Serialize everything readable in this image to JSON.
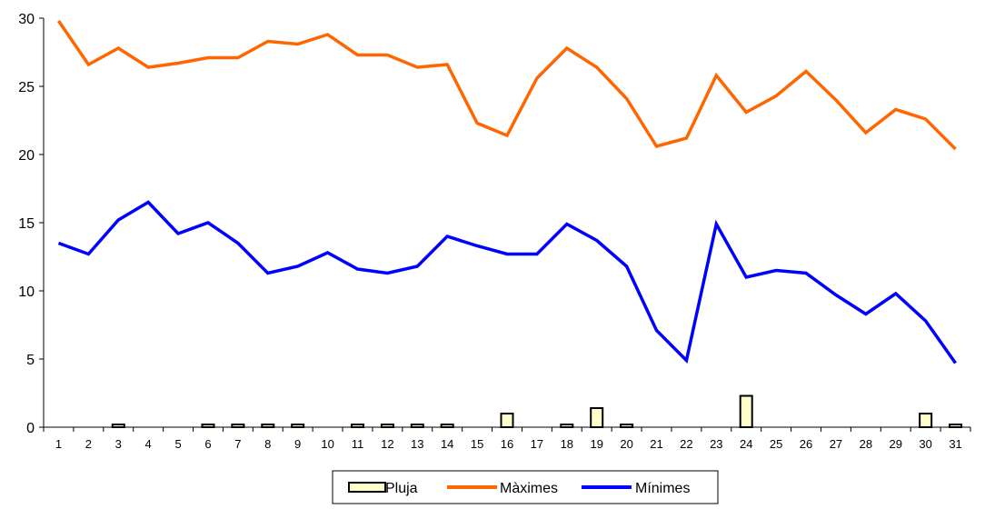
{
  "chart_data": {
    "type": "line",
    "x": [
      1,
      2,
      3,
      4,
      5,
      6,
      7,
      8,
      9,
      10,
      11,
      12,
      13,
      14,
      15,
      16,
      17,
      18,
      19,
      20,
      21,
      22,
      23,
      24,
      25,
      26,
      27,
      28,
      29,
      30,
      31
    ],
    "yticks": [
      0,
      5,
      10,
      15,
      20,
      25,
      30
    ],
    "ylim": [
      0,
      30
    ],
    "title": "",
    "xlabel": "",
    "ylabel": "",
    "grid": false,
    "legend_position": "bottom",
    "series": [
      {
        "name": "Pluja",
        "type": "bar",
        "color": "#FFFFCC",
        "values": [
          0,
          0,
          0.1,
          0,
          0,
          0.1,
          0.1,
          0.1,
          0.1,
          0,
          0.1,
          0.1,
          0.1,
          0.1,
          0,
          1.0,
          0,
          0.1,
          1.4,
          0.1,
          0,
          0,
          0,
          2.3,
          0,
          0,
          0,
          0,
          0,
          1.0,
          0.1
        ]
      },
      {
        "name": "Màximes",
        "type": "line",
        "color": "#FF6600",
        "values": [
          29.8,
          26.6,
          27.8,
          26.4,
          26.7,
          27.1,
          27.1,
          28.3,
          28.1,
          28.8,
          27.3,
          27.3,
          26.4,
          26.6,
          22.3,
          21.4,
          25.6,
          27.8,
          26.4,
          24.1,
          20.6,
          21.2,
          25.8,
          23.1,
          24.3,
          26.1,
          24.0,
          21.6,
          23.3,
          22.6,
          20.4
        ]
      },
      {
        "name": "Mínimes",
        "type": "line",
        "color": "#0000FF",
        "values": [
          13.5,
          12.7,
          15.2,
          16.5,
          14.2,
          15.0,
          13.5,
          11.3,
          11.8,
          12.8,
          11.6,
          11.3,
          11.8,
          14.0,
          13.3,
          12.7,
          12.7,
          14.9,
          13.7,
          11.8,
          7.1,
          4.9,
          14.9,
          11.0,
          11.5,
          11.3,
          9.7,
          8.3,
          9.8,
          7.8,
          4.7
        ]
      }
    ]
  }
}
